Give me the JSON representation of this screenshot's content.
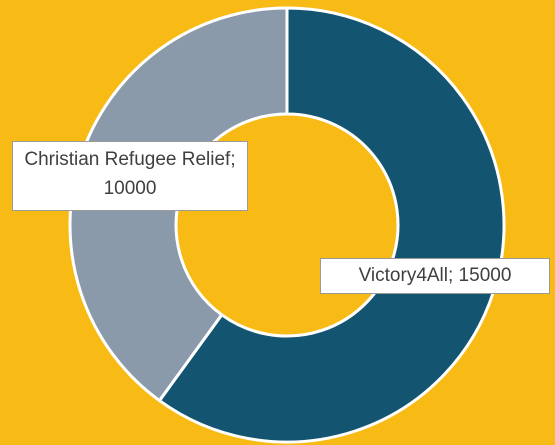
{
  "chart_data": {
    "type": "pie",
    "variant": "doughnut",
    "title": "",
    "series": [
      {
        "values": [
          15000,
          10000
        ]
      }
    ],
    "categories": [
      "Victory4All",
      "Christian Refugee Relief"
    ],
    "values": [
      15000,
      10000
    ],
    "colors": [
      "#135571",
      "#8b9aab"
    ],
    "background": "#f8bb16",
    "slice_border_color": "#ffffff",
    "start_angle_deg": 0,
    "direction": "clockwise",
    "data_labels": [
      "Victory4All; 15000",
      "Christian Refugee Relief; 10000"
    ],
    "legend": "none"
  }
}
